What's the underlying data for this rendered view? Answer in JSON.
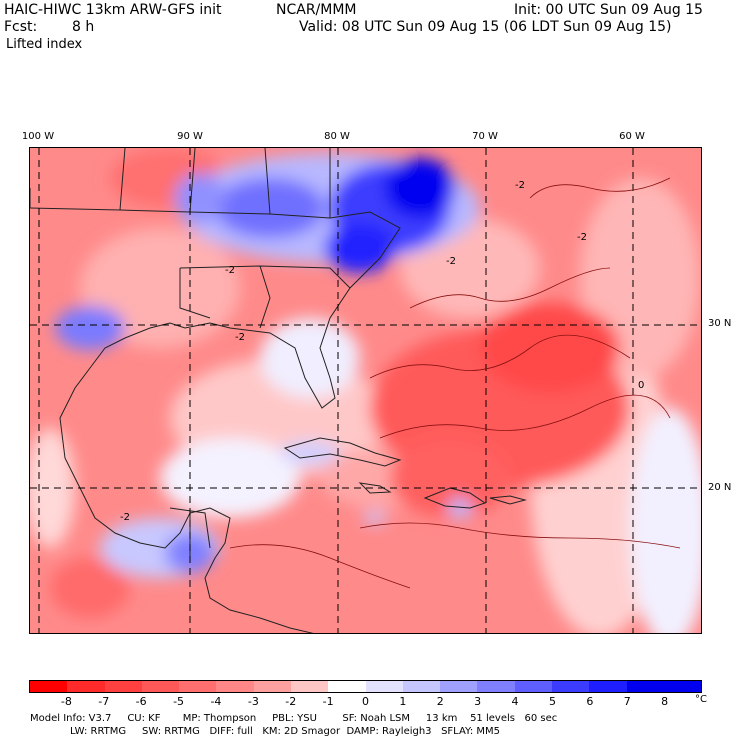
{
  "header": {
    "model": "HAIC-HIWC 13km ARW-GFS init",
    "org": "NCAR/MMM",
    "init": "Init: 00 UTC Sun 09 Aug 15",
    "fcst_label": "Fcst:",
    "fcst_value": "8 h",
    "valid": "Valid: 08 UTC Sun 09 Aug 15 (06 LDT Sun 09 Aug 15)",
    "field": "Lifted index"
  },
  "map": {
    "lon_labels": [
      "100 W",
      "90 W",
      "80 W",
      "70 W",
      "60 W"
    ],
    "lat_labels": [
      "30 N",
      "20 N"
    ],
    "contour_labels": [
      "-2",
      "-2",
      "-2",
      "-2",
      "-2",
      "-2",
      "0"
    ]
  },
  "colorbar": {
    "labels": [
      "-8",
      "-7",
      "-6",
      "-5",
      "-4",
      "-3",
      "-2",
      "-1",
      "0",
      "1",
      "2",
      "3",
      "4",
      "5",
      "6",
      "7",
      "8"
    ],
    "unit": "°C",
    "colors": [
      "#ff0000",
      "#ff2a2a",
      "#ff4040",
      "#ff5858",
      "#ff6f6f",
      "#ff8787",
      "#ffa0a0",
      "#ffc6c6",
      "#ffffff",
      "#e2e2ff",
      "#c6c6ff",
      "#a0a0ff",
      "#8080ff",
      "#5f5fff",
      "#3c3cff",
      "#1e1eff",
      "#0000ee"
    ]
  },
  "footer": {
    "line1": "Model Info: V3.7     CU: KF       MP: Thompson     PBL: YSU        SF: Noah LSM     13 km    51 levels   60 sec",
    "line2": "LW: RRTMG     SW: RRTMG   DIFF: full   KM: 2D Smagor  DAMP: Rayleigh3   SFLAY: MM5"
  }
}
